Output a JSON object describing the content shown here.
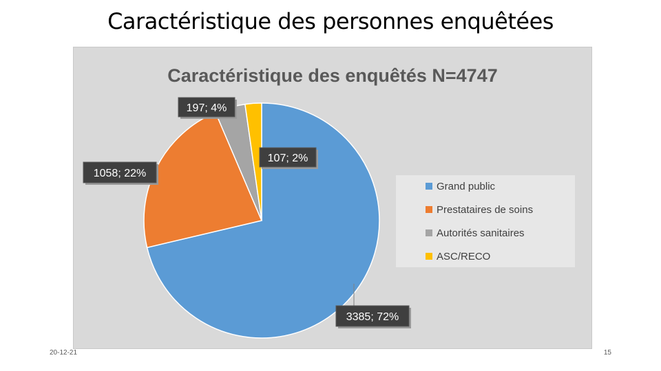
{
  "slide": {
    "title": "Caractéristique des personnes enquêtées",
    "date": "20-12-21",
    "page_number": "15"
  },
  "chart_data": {
    "type": "pie",
    "title": "Caractéristique des enquêtés N=4747",
    "categories": [
      "Grand public",
      "Prestataires de soins",
      "Autorités sanitaires",
      "ASC/RECO"
    ],
    "values": [
      3385,
      1058,
      197,
      107
    ],
    "percent_labels": [
      "72%",
      "22%",
      "4%",
      "2%"
    ],
    "data_labels": [
      "3385; 72%",
      "1058; 22%",
      "197; 4%",
      "107; 2%"
    ],
    "colors": [
      "#5b9bd5",
      "#ed7d31",
      "#a5a5a5",
      "#ffc000"
    ],
    "legend_position": "right",
    "start_angle_deg": 0,
    "direction": "clockwise"
  }
}
